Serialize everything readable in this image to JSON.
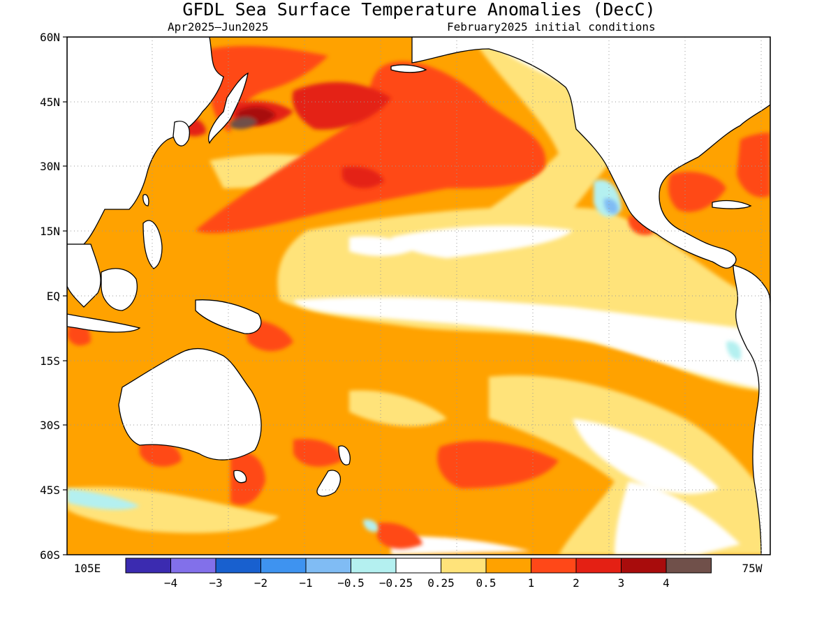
{
  "header": {
    "title": "GFDL Sea Surface Temperature Anomalies (DecC)",
    "period": "Apr2025–Jun2025",
    "initial_conditions": "February2025 initial conditions"
  },
  "map": {
    "lat_range": [
      -60,
      60
    ],
    "lon_range": [
      100,
      285
    ],
    "lat_labels": [
      "60N",
      "45N",
      "30N",
      "15N",
      "EQ",
      "15S",
      "30S",
      "45S",
      "60S"
    ],
    "lon_labels": [
      "105E",
      "75W"
    ],
    "grid": true
  },
  "colorbar": {
    "colors": [
      "#3b2bb0",
      "#8270ea",
      "#1860cf",
      "#3e93f0",
      "#80bcf4",
      "#b4f0f0",
      "#ffffff",
      "#ffe37a",
      "#ffa200",
      "#ff4818",
      "#e42014",
      "#a80c0c",
      "#70504a"
    ],
    "tick_labels": [
      "−4",
      "−3",
      "−2",
      "−1",
      "−0.5",
      "−0.25",
      "0.25",
      "0.5",
      "1",
      "2",
      "3",
      "4"
    ]
  }
}
